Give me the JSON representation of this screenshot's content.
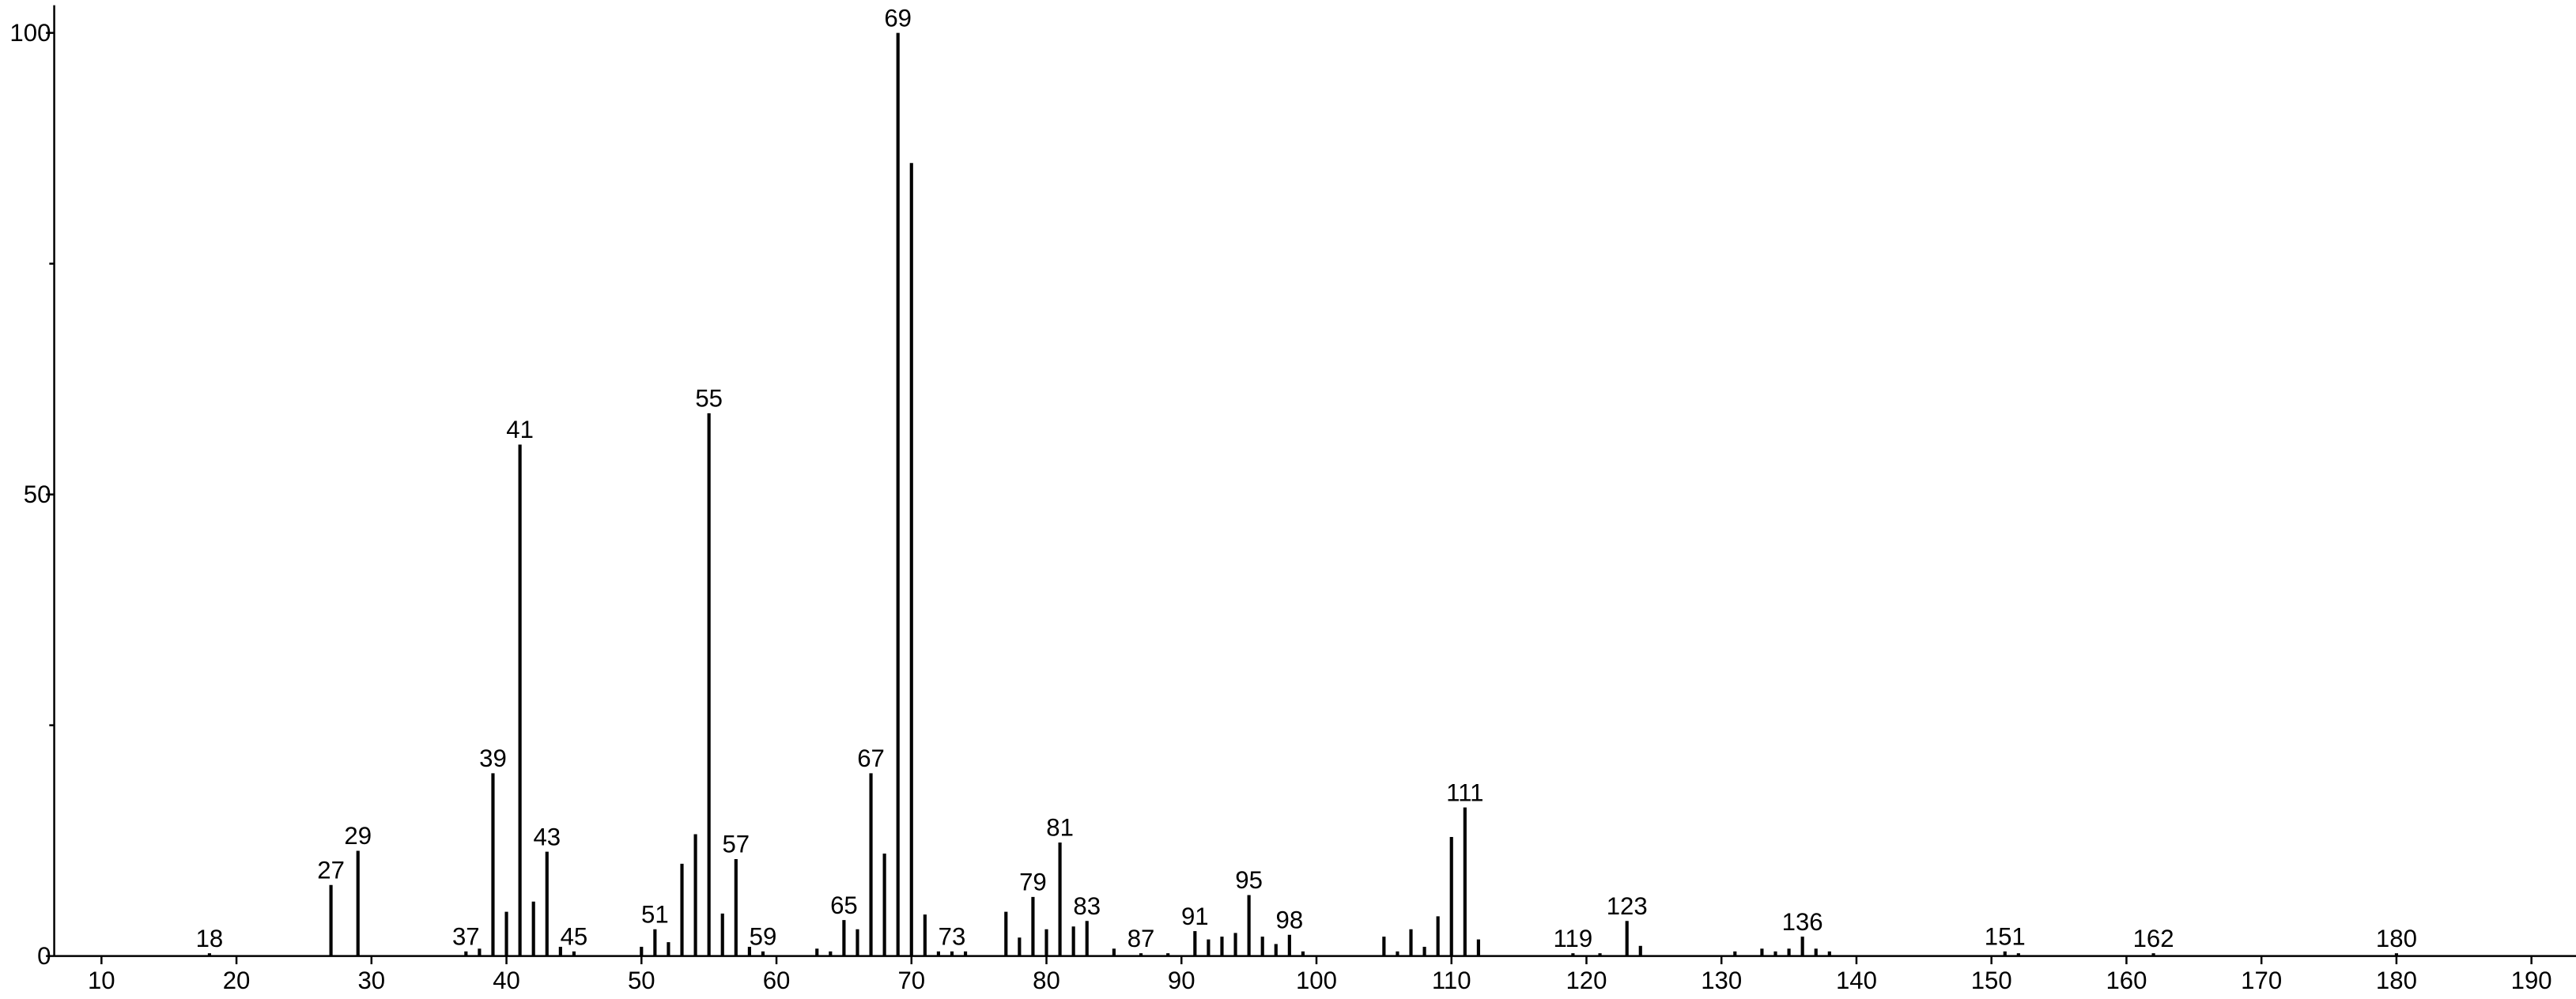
{
  "chart_data": {
    "type": "spectrum",
    "color": "#000000",
    "x": [
      18,
      27,
      29,
      37,
      38,
      39,
      40,
      41,
      42,
      43,
      44,
      45,
      50,
      51,
      52,
      53,
      54,
      55,
      56,
      57,
      58,
      59,
      63,
      64,
      65,
      66,
      67,
      68,
      69,
      70,
      71,
      72,
      73,
      74,
      77,
      78,
      79,
      80,
      81,
      82,
      83,
      85,
      87,
      89,
      91,
      92,
      93,
      94,
      95,
      96,
      97,
      98,
      99,
      105,
      106,
      107,
      108,
      109,
      110,
      111,
      112,
      119,
      121,
      123,
      124,
      131,
      133,
      134,
      135,
      136,
      137,
      138,
      151,
      152,
      162,
      180
    ],
    "values": [
      0.3,
      7.7,
      11.4,
      0.5,
      0.8,
      19.8,
      4.8,
      55.4,
      5.9,
      11.3,
      1,
      0.5,
      1,
      2.9,
      1.5,
      10,
      13.2,
      58.8,
      4.6,
      10.5,
      1,
      0.5,
      0.8,
      0.5,
      3.9,
      2.9,
      19.8,
      11.1,
      100,
      85.9,
      4.5,
      0.5,
      0.5,
      0.5,
      4.8,
      2,
      6.4,
      2.9,
      12.3,
      3.2,
      3.8,
      0.8,
      0.3,
      0.3,
      2.7,
      1.8,
      2.1,
      2.5,
      6.6,
      2.1,
      1.3,
      2.3,
      0.5,
      2.1,
      0.5,
      2.9,
      1,
      4.3,
      12.9,
      16.1,
      1.8,
      0.3,
      0.3,
      3.8,
      1.1,
      0.5,
      0.8,
      0.5,
      0.8,
      2.1,
      0.8,
      0.5,
      0.5,
      0.3,
      0.3,
      0.3
    ],
    "show_label": [
      true,
      true,
      true,
      true,
      false,
      true,
      false,
      true,
      false,
      true,
      false,
      true,
      false,
      true,
      false,
      false,
      false,
      true,
      false,
      true,
      false,
      true,
      false,
      false,
      true,
      false,
      true,
      false,
      true,
      false,
      false,
      false,
      true,
      false,
      false,
      false,
      true,
      false,
      true,
      false,
      true,
      false,
      true,
      false,
      true,
      false,
      false,
      false,
      true,
      false,
      false,
      true,
      false,
      false,
      false,
      false,
      false,
      false,
      false,
      true,
      false,
      true,
      false,
      true,
      false,
      false,
      false,
      false,
      false,
      true,
      false,
      false,
      true,
      false,
      true,
      true
    ],
    "xlim": [
      6.5,
      193.3
    ],
    "ylim": [
      0,
      103
    ],
    "xticks": [
      10,
      20,
      30,
      40,
      50,
      60,
      70,
      80,
      90,
      100,
      110,
      120,
      130,
      140,
      150,
      160,
      170,
      180,
      190
    ],
    "yticks": [
      0,
      50,
      100
    ],
    "yminor": [
      25,
      75
    ]
  }
}
